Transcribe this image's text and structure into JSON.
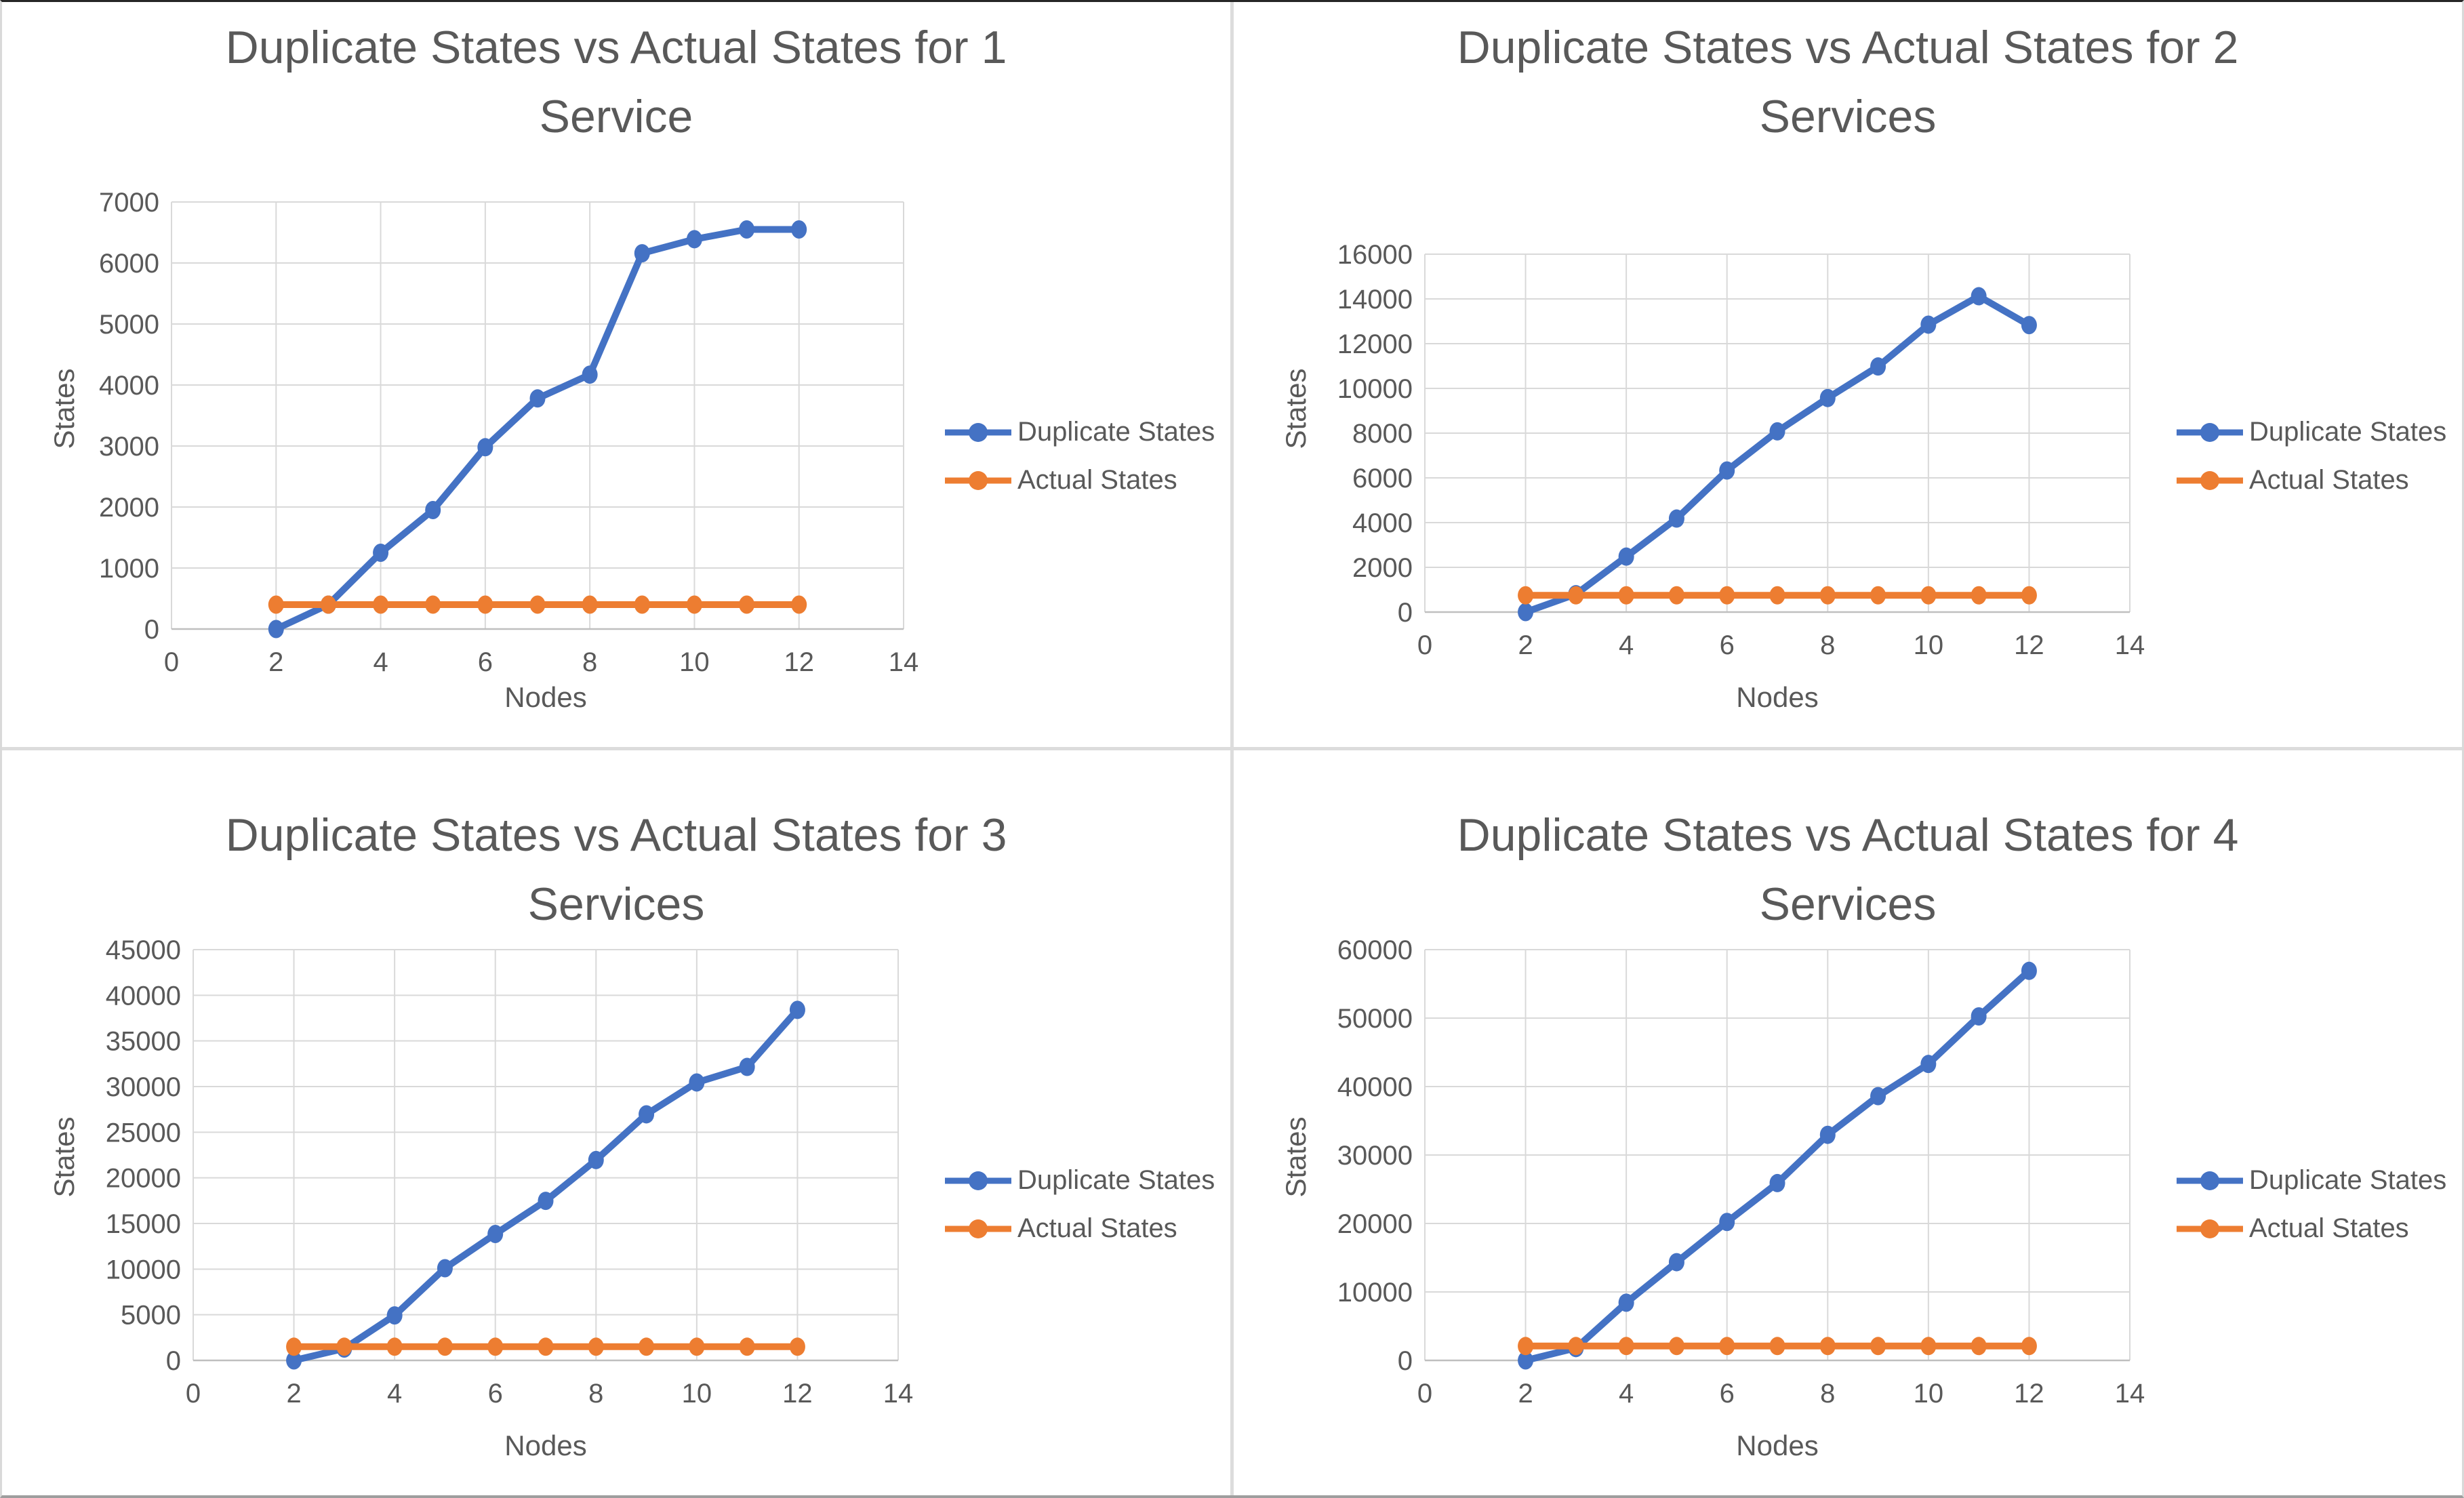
{
  "text_color": "#595959",
  "grid_color": "#d9d9d9",
  "axis_line_color": "#bfbfbf",
  "series_colors": {
    "duplicate_states": "#4472C4",
    "actual_states": "#ED7D31"
  },
  "chart_data": [
    {
      "type": "line",
      "title": "Duplicate States vs Actual States for 1 Service",
      "title_lines": [
        "Duplicate States vs Actual States for 1",
        "Service"
      ],
      "xlabel": "Nodes",
      "ylabel": "States",
      "x": [
        2,
        3,
        4,
        5,
        6,
        7,
        8,
        9,
        10,
        11,
        12
      ],
      "series": [
        {
          "name": "Duplicate States",
          "color": "#4472C4",
          "values": [
            0,
            400,
            1250,
            1950,
            2980,
            3780,
            4170,
            6160,
            6390,
            6550,
            6550
          ]
        },
        {
          "name": "Actual States",
          "color": "#ED7D31",
          "values": [
            400,
            400,
            400,
            400,
            400,
            400,
            400,
            400,
            400,
            400,
            400
          ]
        }
      ],
      "xlim": [
        0,
        14
      ],
      "xtick_step": 2,
      "ylim": [
        0,
        7000
      ],
      "ytick_step": 1000,
      "grid": true,
      "legend_position": "right"
    },
    {
      "type": "line",
      "title": "Duplicate States vs Actual States for 2 Services",
      "title_lines": [
        "Duplicate States vs Actual States for 2",
        "Services"
      ],
      "xlabel": "Nodes",
      "ylabel": "States",
      "x": [
        2,
        3,
        4,
        5,
        6,
        7,
        8,
        9,
        10,
        11,
        12
      ],
      "series": [
        {
          "name": "Duplicate States",
          "color": "#4472C4",
          "values": [
            0,
            800,
            2480,
            4180,
            6330,
            8080,
            9570,
            10980,
            12850,
            14120,
            12830
          ]
        },
        {
          "name": "Actual States",
          "color": "#ED7D31",
          "values": [
            750,
            750,
            750,
            750,
            750,
            750,
            750,
            750,
            750,
            750,
            750
          ]
        }
      ],
      "xlim": [
        0,
        14
      ],
      "xtick_step": 2,
      "ylim": [
        0,
        16000
      ],
      "ytick_step": 2000,
      "grid": true,
      "legend_position": "right"
    },
    {
      "type": "line",
      "title": "Duplicate States vs Actual States for 3 Services",
      "title_lines": [
        "Duplicate States vs Actual States for 3",
        "Services"
      ],
      "xlabel": "Nodes",
      "ylabel": "States",
      "x": [
        2,
        3,
        4,
        5,
        6,
        7,
        8,
        9,
        10,
        11,
        12
      ],
      "series": [
        {
          "name": "Duplicate States",
          "color": "#4472C4",
          "values": [
            0,
            1300,
            4930,
            10100,
            13850,
            17480,
            21950,
            26960,
            30450,
            32150,
            38400
          ]
        },
        {
          "name": "Actual States",
          "color": "#ED7D31",
          "values": [
            1500,
            1500,
            1500,
            1500,
            1500,
            1500,
            1500,
            1500,
            1500,
            1500,
            1500
          ]
        }
      ],
      "xlim": [
        0,
        14
      ],
      "xtick_step": 2,
      "ylim": [
        0,
        45000
      ],
      "ytick_step": 5000,
      "grid": true,
      "legend_position": "right"
    },
    {
      "type": "line",
      "title": "Duplicate States vs Actual States for 4 Services",
      "title_lines": [
        "Duplicate States vs Actual States for 4",
        "Services"
      ],
      "xlabel": "Nodes",
      "ylabel": "States",
      "x": [
        2,
        3,
        4,
        5,
        6,
        7,
        8,
        9,
        10,
        11,
        12
      ],
      "series": [
        {
          "name": "Duplicate States",
          "color": "#4472C4",
          "values": [
            0,
            1800,
            8430,
            14350,
            20220,
            25900,
            32950,
            38600,
            43300,
            50250,
            56900
          ]
        },
        {
          "name": "Actual States",
          "color": "#ED7D31",
          "values": [
            2100,
            2100,
            2100,
            2100,
            2100,
            2100,
            2100,
            2100,
            2100,
            2100,
            2100
          ]
        }
      ],
      "xlim": [
        0,
        14
      ],
      "xtick_step": 2,
      "ylim": [
        0,
        60000
      ],
      "ytick_step": 10000,
      "grid": true,
      "legend_position": "right"
    }
  ]
}
